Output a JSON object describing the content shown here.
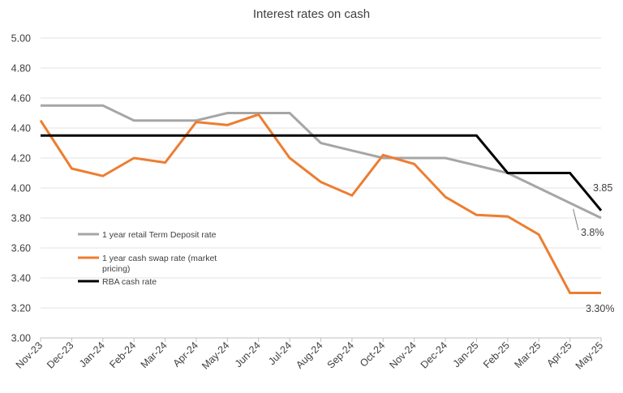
{
  "chart_data": {
    "type": "line",
    "title": "Interest rates on cash",
    "xlabel": "",
    "ylabel": "",
    "ylim": [
      3.0,
      5.0
    ],
    "yticks": [
      "5.00",
      "4.80",
      "4.60",
      "4.40",
      "4.20",
      "4.00",
      "3.80",
      "3.60",
      "3.40",
      "3.20",
      "3.00"
    ],
    "grid": "horizontal",
    "legend_placement": "inside-left",
    "categories": [
      "Nov-23",
      "Dec-23",
      "Jan-24",
      "Feb-24",
      "Mar-24",
      "Apr-24",
      "May-24",
      "Jun-24",
      "Jul-24",
      "Aug-24",
      "Sep-24",
      "Oct-24",
      "Nov-24",
      "Dec-24",
      "Jan-25",
      "Feb-25",
      "Mar-25",
      "Apr-25",
      "May-25"
    ],
    "series": [
      {
        "name": "1 year retail Term Deposit rate",
        "color": "#A6A6A6",
        "values": [
          4.55,
          4.55,
          4.55,
          4.45,
          4.45,
          4.45,
          4.5,
          4.5,
          4.5,
          4.3,
          4.25,
          4.2,
          4.2,
          4.2,
          4.15,
          4.1,
          4.0,
          3.9,
          3.8
        ]
      },
      {
        "name_lines": [
          "1 year cash swap rate (market",
          "pricing)"
        ],
        "color": "#ED7D31",
        "values": [
          4.45,
          4.13,
          4.08,
          4.2,
          4.17,
          4.44,
          4.42,
          4.49,
          4.2,
          4.04,
          3.95,
          4.22,
          4.16,
          3.94,
          3.82,
          3.81,
          3.69,
          3.3,
          3.3
        ]
      },
      {
        "name": "RBA cash rate",
        "color": "#000000",
        "values": [
          4.35,
          4.35,
          4.35,
          4.35,
          4.35,
          4.35,
          4.35,
          4.35,
          4.35,
          4.35,
          4.35,
          4.35,
          4.35,
          4.35,
          4.35,
          4.1,
          4.1,
          4.1,
          3.85
        ]
      }
    ],
    "annotations": [
      {
        "text": "3.85",
        "series": 2
      },
      {
        "text": "3.8%",
        "series": 0
      },
      {
        "text": "3.30%",
        "series": 1
      }
    ]
  }
}
